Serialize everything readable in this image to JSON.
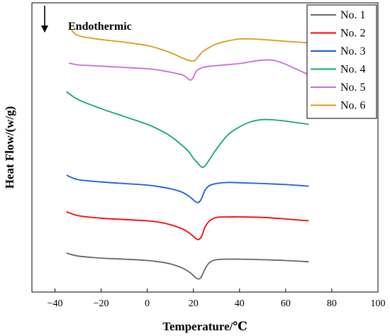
{
  "chart_data": {
    "type": "line",
    "xlabel": "Temperature/℃",
    "ylabel": "Heat Flow/(w/g)",
    "xlim": [
      -50,
      100
    ],
    "xticks": [
      -40,
      -20,
      0,
      20,
      40,
      60,
      80,
      100
    ],
    "ylim": [
      0,
      100
    ],
    "y_ticks_labeled": false,
    "grid": false,
    "legend_position": "top-right",
    "annotation": {
      "text": "Endothermic",
      "arrow_direction": "down"
    },
    "series": [
      {
        "name": "No. 1",
        "color": "#666666",
        "x": [
          -35,
          -30,
          -20,
          -10,
          0,
          5,
          10,
          15,
          18,
          20,
          21,
          22,
          23,
          24,
          25,
          27,
          30,
          35,
          40,
          50,
          60,
          70
        ],
        "y": [
          11.2,
          10,
          9.2,
          8.8,
          8.3,
          7.8,
          7,
          5.5,
          4,
          2.5,
          1.7,
          1.2,
          1.5,
          3,
          5,
          7.5,
          8.6,
          8.8,
          8.8,
          8.6,
          8.3,
          7.8
        ]
      },
      {
        "name": "No. 2",
        "color": "#ff0000",
        "x": [
          -35,
          -30,
          -20,
          -10,
          0,
          5,
          10,
          15,
          18,
          20,
          21,
          22,
          23,
          24,
          25,
          27,
          30,
          35,
          40,
          50,
          60,
          70
        ],
        "y": [
          27,
          25.5,
          24.5,
          24,
          23.5,
          23,
          22,
          20.5,
          19,
          17.5,
          16.8,
          16.3,
          16.8,
          18.5,
          21,
          23.5,
          24.8,
          25,
          25,
          24.8,
          24.2,
          23.5
        ]
      },
      {
        "name": "No. 3",
        "color": "#1a5cd8",
        "x": [
          -35,
          -30,
          -20,
          -10,
          0,
          5,
          10,
          15,
          18,
          20,
          21,
          22,
          23,
          24,
          25,
          27,
          30,
          35,
          40,
          50,
          60,
          70
        ],
        "y": [
          41,
          39.3,
          38.4,
          37.8,
          37.2,
          36.6,
          35.8,
          34.5,
          33,
          31.5,
          30.8,
          30.5,
          31.2,
          33,
          35.2,
          37,
          37.8,
          38.2,
          38.1,
          37.8,
          37.4,
          36.8
        ]
      },
      {
        "name": "No. 4",
        "color": "#16a66e",
        "x": [
          -35,
          -30,
          -20,
          -10,
          0,
          5,
          10,
          15,
          18,
          20,
          21,
          22,
          23,
          24,
          25,
          27,
          30,
          35,
          40,
          45,
          50,
          55,
          60,
          70
        ],
        "y": [
          73,
          70,
          66.5,
          63.5,
          60.5,
          58.5,
          56,
          52.5,
          50,
          47.5,
          46.5,
          45.5,
          44.5,
          44,
          44.5,
          47,
          51,
          56.5,
          59.5,
          61.5,
          62.3,
          62.2,
          61.7,
          60.5
        ]
      },
      {
        "name": "No. 5",
        "color": "#c86dd8",
        "x": [
          -34,
          -30,
          -20,
          -10,
          0,
          5,
          10,
          15,
          17,
          18,
          19,
          20,
          21,
          22,
          25,
          30,
          40,
          45,
          50,
          55,
          60,
          65,
          70
        ],
        "y": [
          84,
          83.3,
          82.8,
          82.3,
          81.8,
          81.3,
          80.5,
          79.5,
          78.5,
          77.7,
          77.5,
          78.5,
          80.5,
          81.5,
          82.5,
          83,
          83.8,
          84.5,
          85.1,
          85,
          83.5,
          81.5,
          79.5
        ]
      },
      {
        "name": "No. 6",
        "color": "#e09a1a",
        "x": [
          -33,
          -30,
          -20,
          -10,
          0,
          5,
          10,
          15,
          18,
          20,
          21,
          22,
          24,
          27,
          30,
          35,
          40,
          45,
          50,
          60,
          70
        ],
        "y": [
          97,
          94.5,
          93,
          92,
          90.7,
          89.5,
          88,
          86,
          85,
          84.8,
          85.2,
          86.3,
          88.3,
          90,
          91.3,
          92.5,
          93.2,
          93.2,
          93,
          92.3,
          91.7
        ]
      }
    ]
  }
}
